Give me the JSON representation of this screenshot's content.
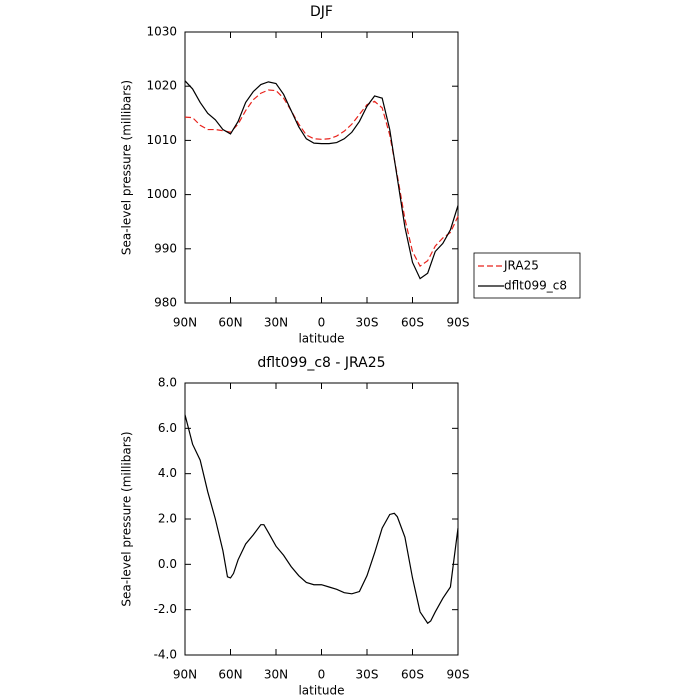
{
  "chart_data": [
    {
      "type": "line",
      "title": "DJF",
      "xlabel": "latitude",
      "ylabel": "Sea-level pressure (millibars)",
      "x": [
        90,
        85,
        80,
        75,
        70,
        65,
        60,
        55,
        50,
        45,
        40,
        35,
        30,
        25,
        20,
        15,
        10,
        5,
        0,
        -5,
        -10,
        -15,
        -20,
        -25,
        -30,
        -35,
        -40,
        -45,
        -50,
        -55,
        -60,
        -65,
        -70,
        -75,
        -80,
        -85,
        -90
      ],
      "series": [
        {
          "name": "JRA25",
          "color": "#e8231c",
          "dash": true,
          "values": [
            1014.3,
            1014.2,
            1012.8,
            1012,
            1012,
            1011.8,
            1011.5,
            1013,
            1015.5,
            1017.5,
            1018.7,
            1019.3,
            1019.2,
            1017.8,
            1015.5,
            1013,
            1011,
            1010.3,
            1010.2,
            1010.3,
            1010.8,
            1011.7,
            1013,
            1014.8,
            1016.6,
            1017.2,
            1016,
            1011,
            1003.5,
            995.5,
            989.5,
            986.8,
            987.8,
            990.5,
            992,
            993,
            996
          ]
        },
        {
          "name": "dflt099_c8",
          "color": "#000000",
          "dash": false,
          "values": [
            1021,
            1019.5,
            1017,
            1015,
            1013.8,
            1012,
            1011.2,
            1013.5,
            1017,
            1019,
            1020.3,
            1020.8,
            1020.5,
            1018.5,
            1015.5,
            1012.5,
            1010.3,
            1009.5,
            1009.4,
            1009.4,
            1009.6,
            1010.3,
            1011.5,
            1013.5,
            1016.3,
            1018.2,
            1017.8,
            1012,
            1003,
            994,
            987.5,
            984.5,
            985.5,
            989.5,
            991,
            993.5,
            998
          ]
        }
      ],
      "xlim": [
        90,
        -90
      ],
      "xticks": [
        {
          "value": 90,
          "label": "90N"
        },
        {
          "value": 60,
          "label": "60N"
        },
        {
          "value": 30,
          "label": "30N"
        },
        0,
        {
          "value": -30,
          "label": "30S"
        },
        {
          "value": -60,
          "label": "60S"
        },
        {
          "value": -90,
          "label": "90S"
        }
      ],
      "ylim": [
        980,
        1030
      ],
      "yticks": [
        980,
        990,
        1000,
        1010,
        1020,
        1030
      ],
      "legend": "right"
    },
    {
      "type": "line",
      "title": "dflt099_c8 - JRA25",
      "xlabel": "latitude",
      "ylabel": "Sea-level pressure (millibars)",
      "x": [
        90,
        85,
        80,
        75,
        70,
        65,
        62,
        60,
        58,
        55,
        50,
        45,
        40,
        38,
        35,
        30,
        25,
        20,
        15,
        10,
        5,
        0,
        -5,
        -10,
        -15,
        -20,
        -25,
        -30,
        -35,
        -40,
        -45,
        -48,
        -50,
        -55,
        -60,
        -65,
        -70,
        -72,
        -75,
        -80,
        -85,
        -90
      ],
      "values": [
        6.6,
        5.3,
        4.6,
        3.2,
        2,
        0.6,
        -0.55,
        -0.6,
        -0.4,
        0.2,
        0.9,
        1.3,
        1.75,
        1.75,
        1.4,
        0.8,
        0.4,
        -0.1,
        -0.5,
        -0.8,
        -0.9,
        -0.9,
        -1,
        -1.1,
        -1.25,
        -1.3,
        -1.2,
        -0.5,
        0.5,
        1.6,
        2.2,
        2.25,
        2.1,
        1.2,
        -0.6,
        -2.1,
        -2.6,
        -2.5,
        -2.1,
        -1.5,
        -1,
        1.6
      ],
      "color": "#000000",
      "xlim": [
        90,
        -90
      ],
      "xticks": [
        {
          "value": 90,
          "label": "90N"
        },
        {
          "value": 60,
          "label": "60N"
        },
        {
          "value": 30,
          "label": "30N"
        },
        0,
        {
          "value": -30,
          "label": "30S"
        },
        {
          "value": -60,
          "label": "60S"
        },
        {
          "value": -90,
          "label": "90S"
        }
      ],
      "ylim": [
        -4,
        8
      ],
      "yticks": [
        {
          "value": -4,
          "label": "-4.0"
        },
        {
          "value": -2,
          "label": "-2.0"
        },
        {
          "value": 0,
          "label": "0.0"
        },
        {
          "value": 2,
          "label": "2.0"
        },
        {
          "value": 4,
          "label": "4.0"
        },
        {
          "value": 6,
          "label": "6.0"
        },
        {
          "value": 8,
          "label": "8.0"
        }
      ]
    }
  ]
}
